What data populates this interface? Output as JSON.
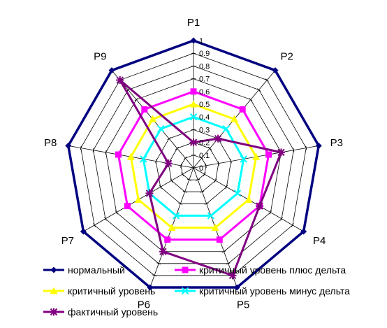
{
  "chart_data": {
    "type": "radar",
    "title": "",
    "categories": [
      "P1",
      "P2",
      "P3",
      "P4",
      "P5",
      "P6",
      "P7",
      "P8",
      "P9"
    ],
    "ticks": [
      "0",
      "0.1",
      "0.2",
      "0.3",
      "0.4",
      "0.5",
      "0.6",
      "0.7",
      "0.8",
      "0.9",
      "1"
    ],
    "range": [
      0,
      1
    ],
    "grid": true,
    "legend_position": "bottom",
    "series": [
      {
        "name": "нормальный",
        "color": "#000080",
        "marker": "diamond",
        "values": [
          1,
          1,
          1,
          1,
          1,
          1,
          1,
          1,
          1
        ]
      },
      {
        "name": "критичный уровень плюс дельта",
        "color": "#ff00ff",
        "marker": "square",
        "values": [
          0.6,
          0.6,
          0.6,
          0.6,
          0.6,
          0.6,
          0.6,
          0.6,
          0.6
        ]
      },
      {
        "name": "критичный уровень",
        "color": "#ffff00",
        "marker": "triangle",
        "values": [
          0.5,
          0.5,
          0.5,
          0.5,
          0.5,
          0.5,
          0.5,
          0.5,
          0.5
        ]
      },
      {
        "name": "критичный уровень минус дельта",
        "color": "#00ffff",
        "marker": "x",
        "values": [
          0.4,
          0.4,
          0.4,
          0.4,
          0.4,
          0.4,
          0.4,
          0.4,
          0.4
        ]
      },
      {
        "name": "фактичный уровень",
        "color": "#800080",
        "marker": "star",
        "values": [
          0.2,
          0.3,
          0.7,
          0.6,
          0.9,
          0.7,
          0.4,
          0.2,
          0.9
        ]
      }
    ]
  }
}
